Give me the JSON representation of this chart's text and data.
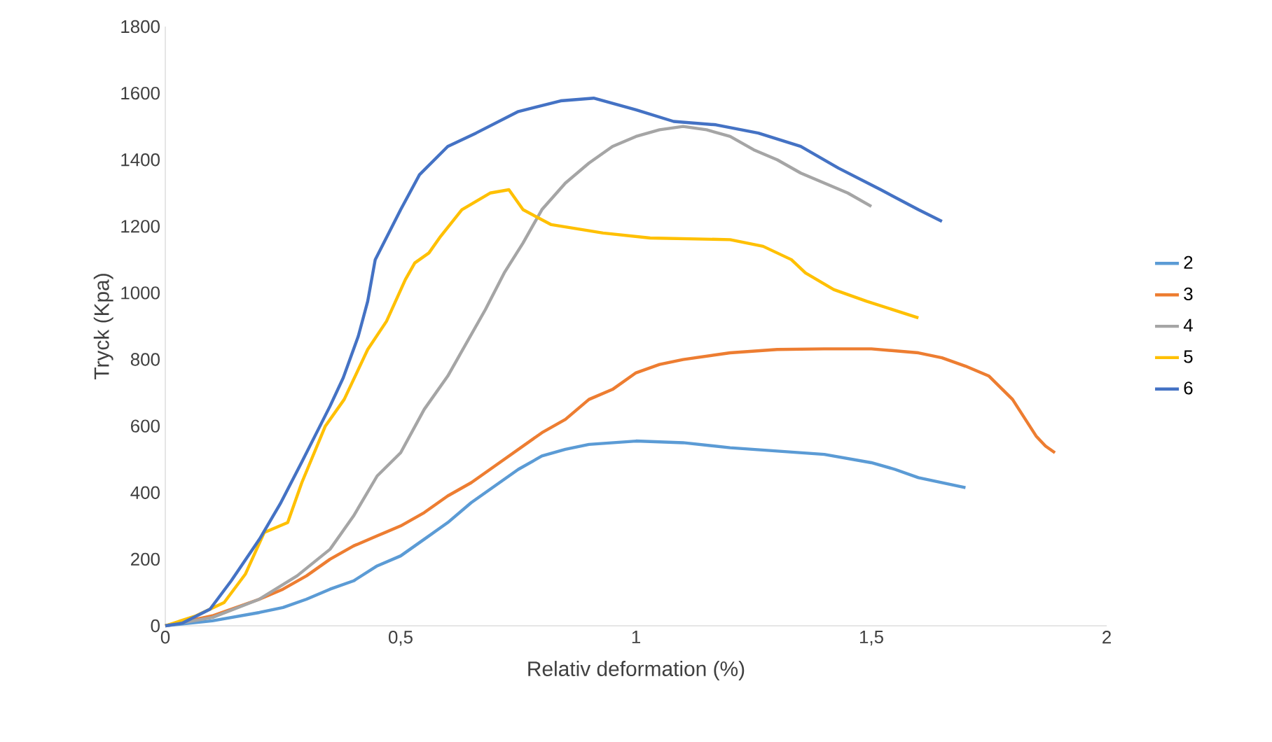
{
  "chart_data": {
    "type": "line",
    "xlabel": "Relativ deformation (%)",
    "ylabel": "Tryck (Kpa)",
    "xlim": [
      0,
      2
    ],
    "ylim": [
      0,
      1800
    ],
    "xticks": [
      0,
      {
        "value": 0.5,
        "label": "0,5"
      },
      1,
      {
        "value": 1.5,
        "label": "1,5"
      },
      2
    ],
    "yticks": [
      0,
      200,
      400,
      600,
      800,
      1000,
      1200,
      1400,
      1600,
      1800
    ],
    "grid": false,
    "legend": "right",
    "series": [
      {
        "name": "2",
        "color": "#5b9bd5",
        "x": [
          0,
          0.1,
          0.2,
          0.25,
          0.3,
          0.35,
          0.4,
          0.45,
          0.5,
          0.55,
          0.6,
          0.65,
          0.7,
          0.75,
          0.8,
          0.85,
          0.9,
          1.0,
          1.1,
          1.2,
          1.3,
          1.4,
          1.5,
          1.55,
          1.6,
          1.65,
          1.7
        ],
        "values": [
          0,
          15,
          40,
          55,
          80,
          110,
          135,
          180,
          210,
          260,
          310,
          370,
          420,
          470,
          510,
          530,
          545,
          555,
          550,
          535,
          525,
          515,
          490,
          470,
          445,
          430,
          415
        ]
      },
      {
        "name": "3",
        "color": "#ed7d31",
        "x": [
          0,
          0.1,
          0.2,
          0.25,
          0.3,
          0.35,
          0.4,
          0.45,
          0.5,
          0.55,
          0.6,
          0.65,
          0.7,
          0.75,
          0.8,
          0.85,
          0.9,
          0.95,
          1.0,
          1.05,
          1.1,
          1.2,
          1.3,
          1.4,
          1.5,
          1.6,
          1.65,
          1.7,
          1.75,
          1.8,
          1.85,
          1.87,
          1.89
        ],
        "values": [
          0,
          30,
          80,
          110,
          150,
          200,
          240,
          270,
          300,
          340,
          390,
          430,
          480,
          530,
          580,
          620,
          680,
          710,
          760,
          785,
          800,
          820,
          830,
          832,
          832,
          820,
          805,
          780,
          750,
          680,
          570,
          540,
          520
        ]
      },
      {
        "name": "4",
        "color": "#a5a5a5",
        "x": [
          0,
          0.1,
          0.2,
          0.28,
          0.35,
          0.4,
          0.45,
          0.5,
          0.55,
          0.6,
          0.62,
          0.68,
          0.72,
          0.76,
          0.8,
          0.85,
          0.9,
          0.95,
          1.0,
          1.05,
          1.1,
          1.15,
          1.2,
          1.25,
          1.3,
          1.35,
          1.4,
          1.45,
          1.5
        ],
        "values": [
          0,
          25,
          80,
          150,
          230,
          330,
          450,
          520,
          650,
          750,
          800,
          950,
          1060,
          1150,
          1250,
          1330,
          1390,
          1440,
          1470,
          1490,
          1500,
          1490,
          1470,
          1430,
          1400,
          1360,
          1330,
          1300,
          1260
        ]
      },
      {
        "name": "5",
        "color": "#ffc000",
        "x": [
          0,
          0.065,
          0.125,
          0.17,
          0.21,
          0.26,
          0.29,
          0.34,
          0.38,
          0.43,
          0.47,
          0.51,
          0.53,
          0.56,
          0.585,
          0.63,
          0.69,
          0.73,
          0.76,
          0.82,
          0.93,
          1.03,
          1.2,
          1.27,
          1.33,
          1.36,
          1.42,
          1.49,
          1.6
        ],
        "values": [
          0,
          30,
          70,
          155,
          280,
          310,
          430,
          600,
          680,
          830,
          915,
          1040,
          1090,
          1120,
          1170,
          1250,
          1300,
          1310,
          1250,
          1205,
          1180,
          1165,
          1160,
          1140,
          1100,
          1060,
          1010,
          975,
          925
        ]
      },
      {
        "name": "6",
        "color": "#4472c4",
        "x": [
          0,
          0.036,
          0.095,
          0.14,
          0.2,
          0.244,
          0.29,
          0.35,
          0.378,
          0.41,
          0.43,
          0.446,
          0.5,
          0.54,
          0.6,
          0.66,
          0.75,
          0.84,
          0.91,
          1.0,
          1.08,
          1.17,
          1.26,
          1.35,
          1.43,
          1.52,
          1.6,
          1.65
        ],
        "values": [
          0,
          8,
          50,
          135,
          260,
          366,
          492,
          660,
          745,
          870,
          975,
          1100,
          1250,
          1355,
          1440,
          1480,
          1545,
          1577,
          1585,
          1550,
          1515,
          1505,
          1480,
          1440,
          1375,
          1310,
          1250,
          1215
        ]
      }
    ]
  }
}
